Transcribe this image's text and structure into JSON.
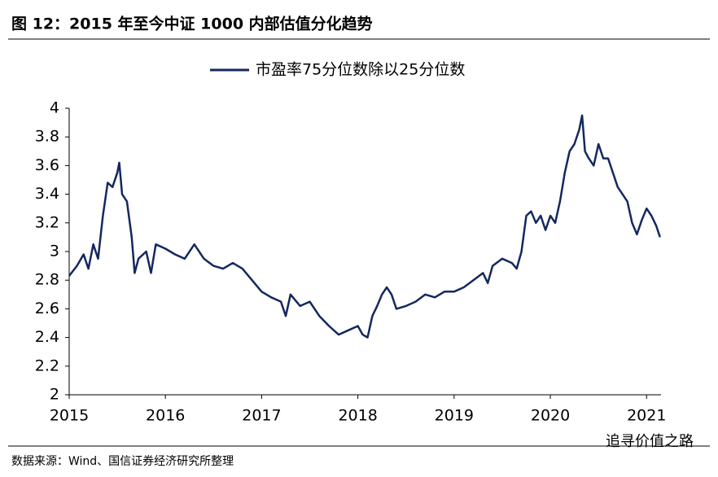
{
  "chart_data": {
    "type": "line",
    "title": "图 12：2015 年至今中证 1000 内部估值分化趋势",
    "source": "数据来源：Wind、国信证券经济研究所整理",
    "watermark": "追寻价值之路",
    "legend": "top",
    "xlim": [
      2015,
      2021.15
    ],
    "xticks": [
      2015,
      2016,
      2017,
      2018,
      2019,
      2020,
      2021
    ],
    "ylim": [
      2,
      4
    ],
    "yticks": [
      2,
      {
        "value": 2.2,
        "label": "2.2"
      },
      {
        "value": 2.4,
        "label": "2.4"
      },
      {
        "value": 2.6,
        "label": "2.6"
      },
      {
        "value": 2.8,
        "label": "2.8"
      },
      3,
      {
        "value": 3.2,
        "label": "3.2"
      },
      {
        "value": 3.4,
        "label": "3.4"
      },
      {
        "value": 3.6,
        "label": "3.6"
      },
      {
        "value": 3.8,
        "label": "3.8"
      },
      4
    ],
    "x": [
      2015.0,
      2015.08,
      2015.15,
      2015.2,
      2015.25,
      2015.3,
      2015.35,
      2015.4,
      2015.45,
      2015.5,
      2015.52,
      2015.55,
      2015.6,
      2015.65,
      2015.68,
      2015.72,
      2015.8,
      2015.85,
      2015.9,
      2016.0,
      2016.1,
      2016.2,
      2016.3,
      2016.4,
      2016.5,
      2016.6,
      2016.7,
      2016.8,
      2016.9,
      2017.0,
      2017.1,
      2017.2,
      2017.25,
      2017.3,
      2017.4,
      2017.5,
      2017.6,
      2017.7,
      2017.8,
      2017.9,
      2018.0,
      2018.05,
      2018.1,
      2018.15,
      2018.2,
      2018.25,
      2018.3,
      2018.35,
      2018.4,
      2018.5,
      2018.6,
      2018.7,
      2018.8,
      2018.9,
      2019.0,
      2019.1,
      2019.2,
      2019.3,
      2019.35,
      2019.4,
      2019.5,
      2019.6,
      2019.65,
      2019.7,
      2019.75,
      2019.8,
      2019.85,
      2019.9,
      2019.95,
      2020.0,
      2020.05,
      2020.1,
      2020.15,
      2020.2,
      2020.25,
      2020.3,
      2020.33,
      2020.36,
      2020.4,
      2020.45,
      2020.5,
      2020.55,
      2020.6,
      2020.65,
      2020.7,
      2020.75,
      2020.8,
      2020.85,
      2020.9,
      2020.95,
      2021.0,
      2021.05,
      2021.1,
      2021.14
    ],
    "series": [
      {
        "name": "市盈率75分位数除以25分位数",
        "color": "#14285e",
        "values": [
          2.83,
          2.9,
          2.98,
          2.88,
          3.05,
          2.95,
          3.25,
          3.48,
          3.45,
          3.55,
          3.62,
          3.4,
          3.35,
          3.1,
          2.85,
          2.95,
          3.0,
          2.85,
          3.05,
          3.02,
          2.98,
          2.95,
          3.05,
          2.95,
          2.9,
          2.88,
          2.92,
          2.88,
          2.8,
          2.72,
          2.68,
          2.65,
          2.55,
          2.7,
          2.62,
          2.65,
          2.55,
          2.48,
          2.42,
          2.45,
          2.48,
          2.42,
          2.4,
          2.55,
          2.62,
          2.7,
          2.75,
          2.7,
          2.6,
          2.62,
          2.65,
          2.7,
          2.68,
          2.72,
          2.72,
          2.75,
          2.8,
          2.85,
          2.78,
          2.9,
          2.95,
          2.92,
          2.88,
          3.0,
          3.25,
          3.28,
          3.2,
          3.25,
          3.15,
          3.25,
          3.2,
          3.35,
          3.55,
          3.7,
          3.75,
          3.85,
          3.95,
          3.7,
          3.65,
          3.6,
          3.75,
          3.65,
          3.65,
          3.55,
          3.45,
          3.4,
          3.35,
          3.2,
          3.12,
          3.22,
          3.3,
          3.25,
          3.18,
          3.1
        ]
      }
    ]
  }
}
